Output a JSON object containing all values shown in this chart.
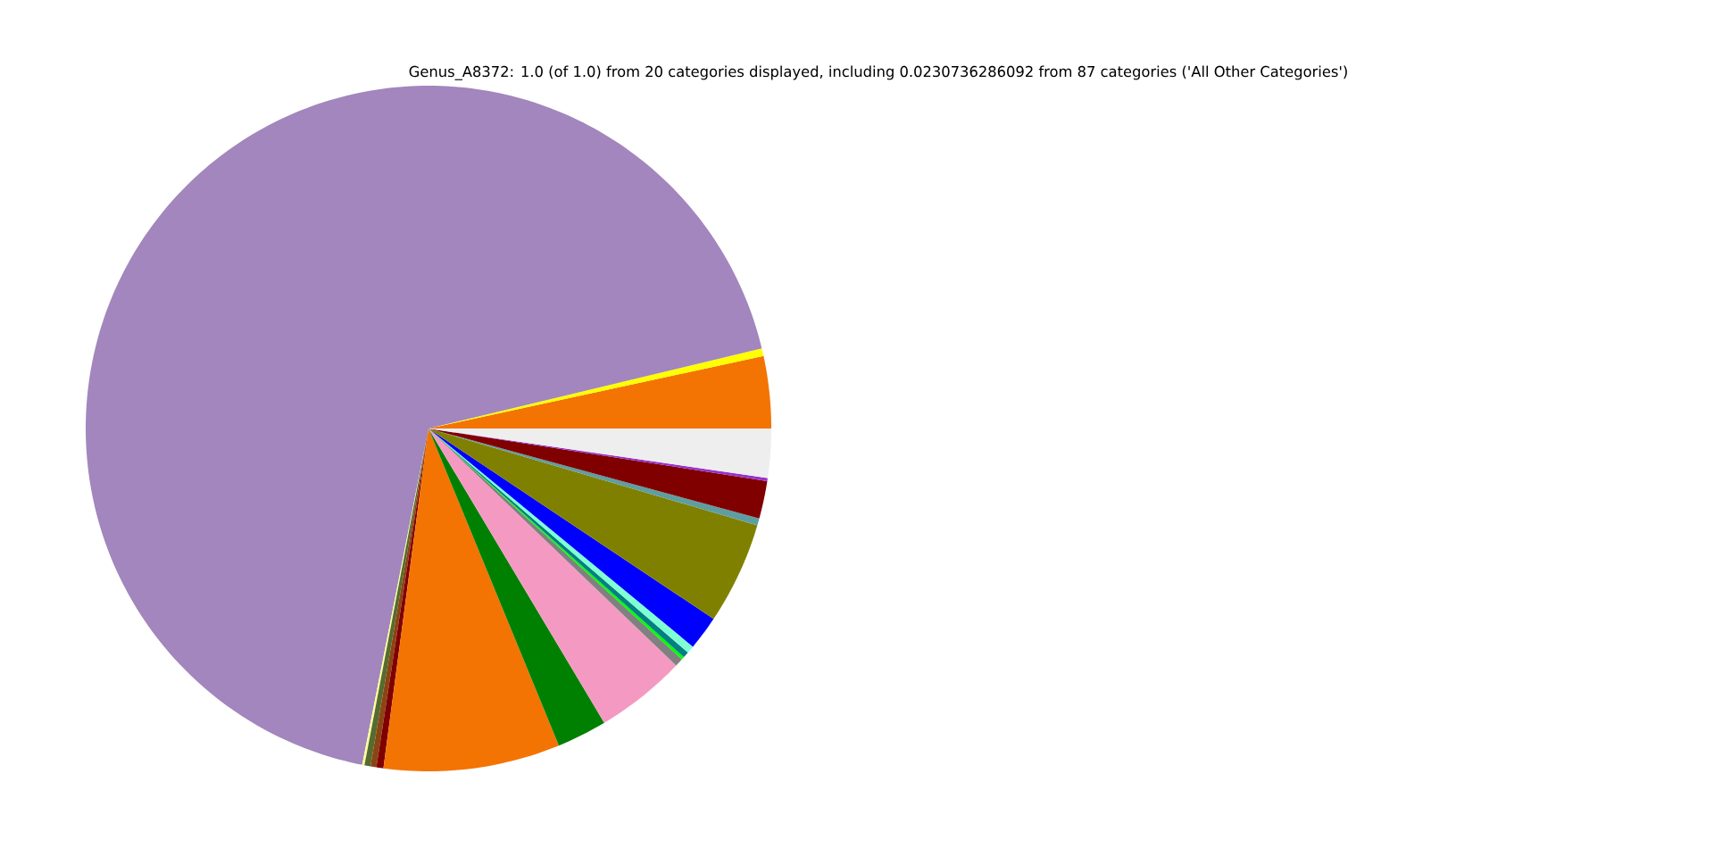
{
  "chart_data": {
    "type": "pie",
    "title": "Genus_A8372: 1.0 (of 1.0) from 20 categories displayed, including 0.0230736286092 from 87 categories ('All Other Categories')",
    "categories": [
      null,
      null,
      null,
      null,
      null,
      null,
      null,
      null,
      null,
      null,
      null,
      null,
      null,
      null,
      null,
      null,
      null,
      null,
      null,
      null
    ],
    "values": [
      3.39,
      0.36,
      68.15,
      0.11,
      0.28,
      0.28,
      0.33,
      8.31,
      2.36,
      4.28,
      0.39,
      0.14,
      0.28,
      0.36,
      1.61,
      4.81,
      0.33,
      1.78,
      0.14,
      2.31
    ],
    "colors": [
      "#f37403",
      "#ffff00",
      "#a286bd",
      "#ffff99",
      "#556b2f",
      "#8b4513",
      "#800000",
      "#f37403",
      "#008000",
      "#f49ac2",
      "#808080",
      "#00ff00",
      "#008080",
      "#7fffd4",
      "#0000ff",
      "#808000",
      "#5f9ea0",
      "#800000",
      "#9932cc",
      "#eeeeee"
    ]
  }
}
